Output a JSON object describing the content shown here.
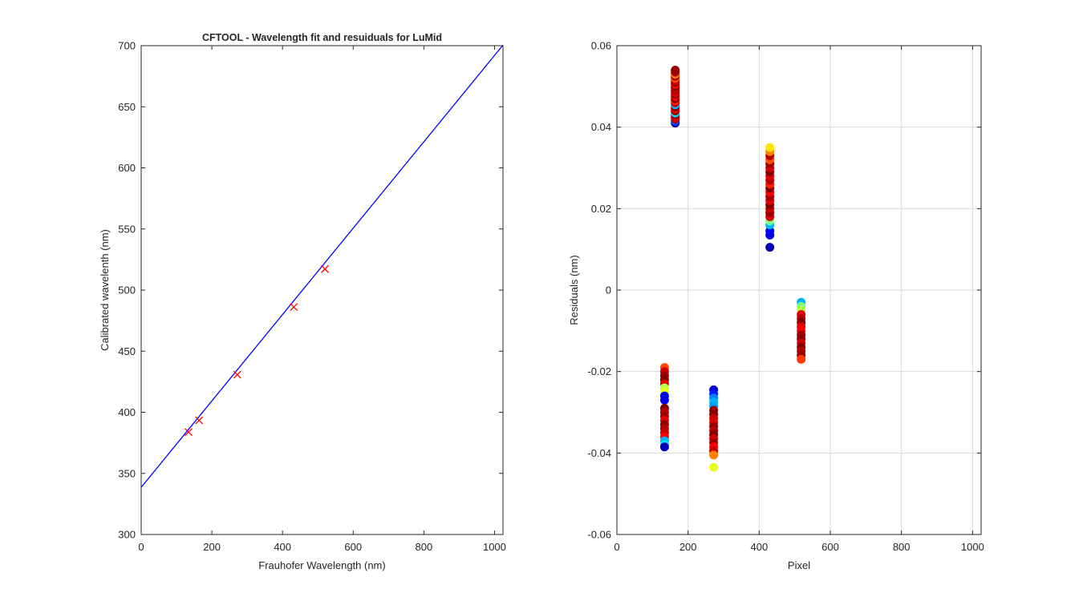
{
  "colors": {
    "fit_line": "#0000ff",
    "marker": "#ff0000",
    "axis": "#262626",
    "grid": "#d9d9d9",
    "colormap": "jet"
  },
  "chart_data": [
    {
      "type": "line",
      "title": "CFTOOL - Wavelength fit and resuiduals for LuMid",
      "xlabel": "Frauhofer Wavelength (nm)",
      "ylabel": "Calibrated wavelenth (nm)",
      "xlim": [
        0,
        1024
      ],
      "ylim": [
        300,
        700
      ],
      "xticks": [
        "0",
        "200",
        "400",
        "600",
        "800",
        "1000"
      ],
      "yticks": [
        "300",
        "350",
        "400",
        "450",
        "500",
        "550",
        "600",
        "650",
        "700"
      ],
      "grid": false,
      "series": [
        {
          "kind": "line",
          "x": [
            0,
            1024
          ],
          "y": [
            338.6,
            700.5
          ]
        },
        {
          "kind": "markers",
          "marker": "x",
          "x": [
            134,
            164,
            272,
            432,
            520
          ],
          "y": [
            383.8,
            393.4,
            430.8,
            486.1,
            517.2
          ]
        }
      ]
    },
    {
      "type": "scatter",
      "xlabel": "Pixel",
      "ylabel": "Residuals  (nm)",
      "xlim": [
        0,
        1024
      ],
      "ylim": [
        -0.06,
        0.06
      ],
      "xticks": [
        "0",
        "200",
        "400",
        "600",
        "800",
        "1000"
      ],
      "yticks": [
        "-0.06",
        "-0.04",
        "-0.02",
        "0",
        "0.02",
        "0.04",
        "0.06"
      ],
      "grid": true,
      "series": [
        {
          "x": 164,
          "y": [
            0.041,
            0.0415,
            0.042,
            0.0425,
            0.043,
            0.0435,
            0.044,
            0.0445,
            0.045,
            0.0455,
            0.046,
            0.0465,
            0.047,
            0.0475,
            0.048,
            0.0485,
            0.049,
            0.0495,
            0.05,
            0.0505,
            0.051,
            0.0515,
            0.052,
            0.0525,
            0.053,
            0.0535,
            0.054
          ],
          "c": [
            0.05,
            0.2,
            0.95,
            0.9,
            0.98,
            0.35,
            0.97,
            0.9,
            0.99,
            0.3,
            0.93,
            0.85,
            1.0,
            0.88,
            0.98,
            0.9,
            0.96,
            0.92,
            1.0,
            0.87,
            0.97,
            0.93,
            0.8,
            0.96,
            0.75,
            0.95,
            0.98
          ]
        },
        {
          "x": 430,
          "y": [
            0.0105,
            0.0135,
            0.0145,
            0.016,
            0.017,
            0.018,
            0.019,
            0.02,
            0.021,
            0.022,
            0.023,
            0.024,
            0.025,
            0.026,
            0.027,
            0.028,
            0.029,
            0.03,
            0.031,
            0.032,
            0.033,
            0.034,
            0.035
          ],
          "c": [
            0.05,
            0.08,
            0.12,
            0.3,
            0.5,
            0.9,
            0.98,
            0.93,
            1.0,
            0.9,
            0.97,
            0.88,
            1.0,
            0.85,
            0.95,
            0.9,
            1.0,
            0.92,
            0.97,
            0.8,
            0.95,
            0.75,
            0.65
          ]
        },
        {
          "x": 518,
          "y": [
            -0.003,
            -0.004,
            -0.005,
            -0.006,
            -0.007,
            -0.008,
            -0.009,
            -0.01,
            -0.011,
            -0.012,
            -0.013,
            -0.014,
            -0.015,
            -0.016,
            -0.017
          ],
          "c": [
            0.3,
            0.5,
            0.55,
            0.9,
            0.95,
            1.0,
            0.9,
            0.88,
            0.97,
            0.99,
            0.92,
            1.0,
            0.95,
            0.98,
            0.82
          ]
        },
        {
          "x": 134,
          "y": [
            -0.019,
            -0.02,
            -0.021,
            -0.022,
            -0.023,
            -0.024,
            -0.025,
            -0.026,
            -0.027,
            -0.029,
            -0.03,
            -0.031,
            -0.032,
            -0.033,
            -0.034,
            -0.035,
            -0.036,
            -0.037,
            -0.038,
            -0.0385
          ],
          "c": [
            0.8,
            0.92,
            0.97,
            1.0,
            0.9,
            0.55,
            0.6,
            0.12,
            0.1,
            1.0,
            0.95,
            0.97,
            0.9,
            0.99,
            0.95,
            0.93,
            0.88,
            0.3,
            0.35,
            0.05
          ]
        },
        {
          "x": 272,
          "y": [
            -0.0245,
            -0.0255,
            -0.0265,
            -0.0275,
            -0.0285,
            -0.0295,
            -0.0305,
            -0.0315,
            -0.0325,
            -0.0335,
            -0.0345,
            -0.0355,
            -0.0365,
            -0.0375,
            -0.0385,
            -0.0395,
            -0.0405,
            -0.0435
          ],
          "c": [
            0.08,
            0.15,
            0.25,
            0.3,
            0.28,
            0.97,
            1.0,
            0.93,
            0.9,
            0.98,
            0.95,
            1.0,
            0.92,
            0.97,
            0.88,
            0.93,
            0.75,
            0.6
          ]
        }
      ]
    }
  ]
}
